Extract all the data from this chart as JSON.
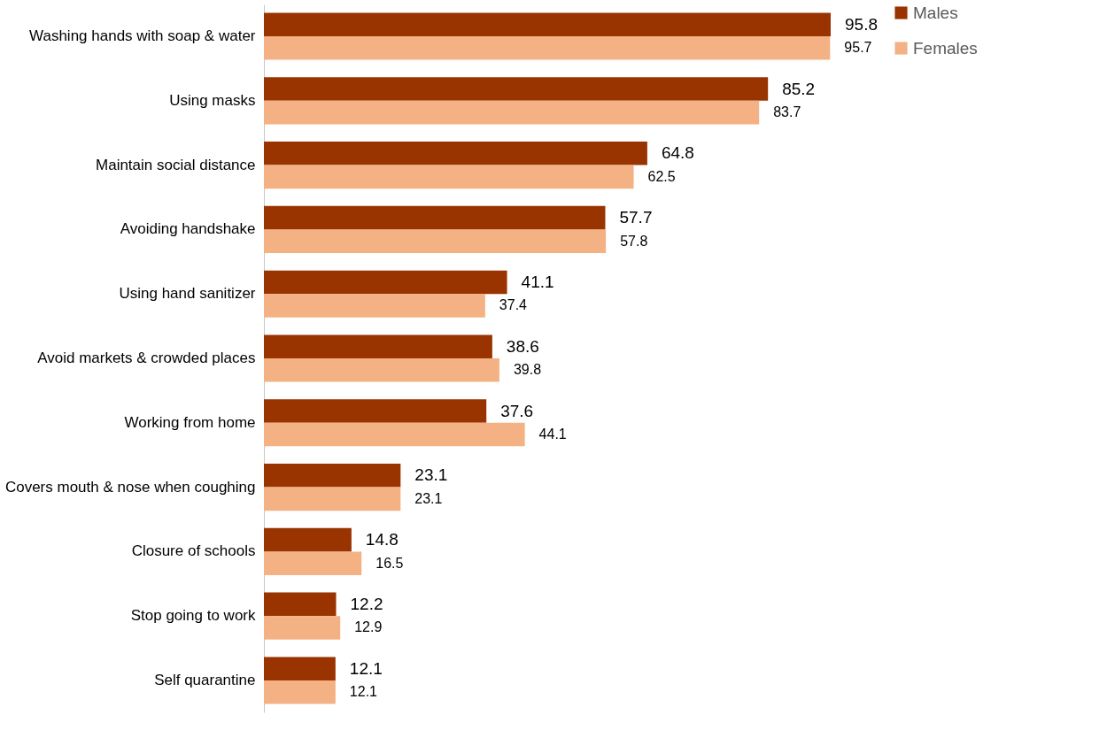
{
  "chart_data": {
    "type": "bar",
    "orientation": "horizontal",
    "data_labels": true,
    "legend": "right",
    "grid": false,
    "categories": [
      "Washing hands with soap & water",
      "Using masks",
      "Maintain social distance",
      "Avoiding handshake",
      "Using hand sanitizer",
      "Avoid markets & crowded places",
      "Working from home",
      "Covers mouth & nose when coughing",
      "Closure of schools",
      "Stop going to work",
      "Self quarantine"
    ],
    "series": [
      {
        "name": "Males",
        "color": "#993300",
        "values": [
          95.8,
          85.2,
          64.8,
          57.7,
          41.1,
          38.6,
          37.6,
          23.1,
          14.8,
          12.2,
          12.1
        ]
      },
      {
        "name": "Females",
        "color": "#f4b183",
        "values": [
          95.7,
          83.7,
          62.5,
          57.8,
          37.4,
          39.8,
          44.1,
          23.1,
          16.5,
          12.9,
          12.1
        ]
      }
    ]
  }
}
